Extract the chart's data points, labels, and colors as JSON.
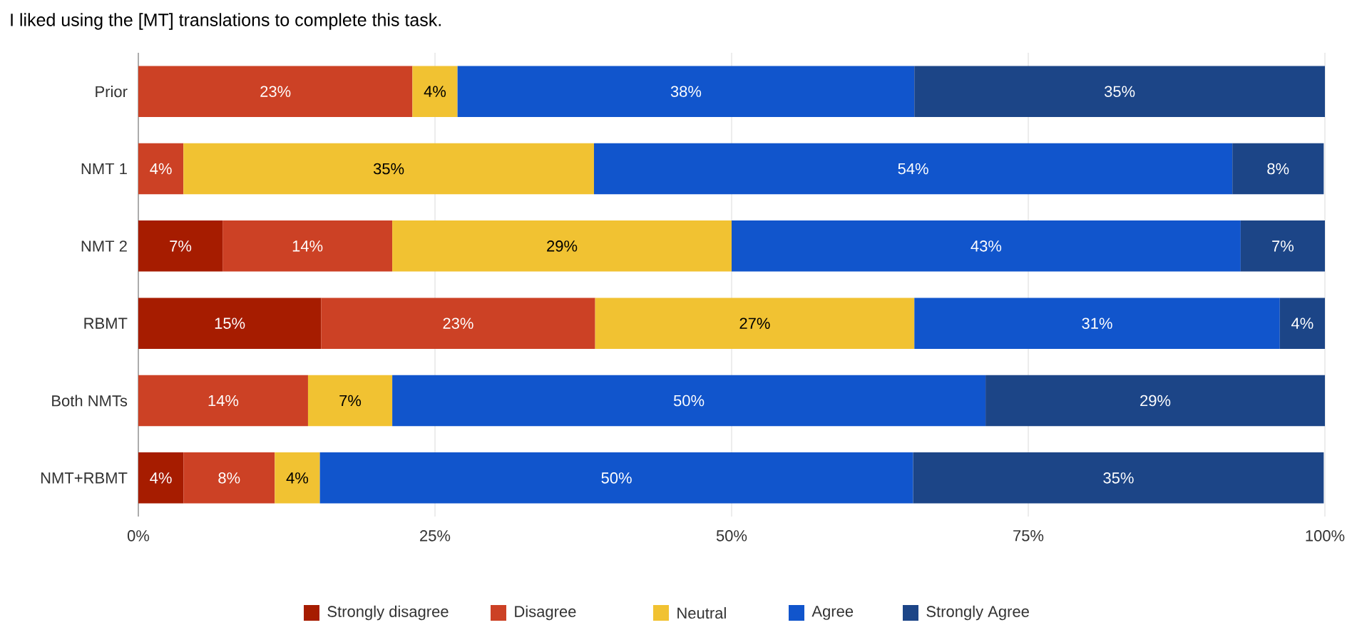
{
  "chart_data": {
    "type": "bar",
    "orientation": "horizontal",
    "stacked": true,
    "title": "I liked using the [MT] translations to complete this task.",
    "categories": [
      "Prior",
      "NMT 1",
      "NMT 2",
      "RBMT",
      "Both NMTs",
      "NMT+RBMT"
    ],
    "series": [
      {
        "name": "Strongly disagree",
        "color": "#a61c00",
        "values": [
          null,
          null,
          7.1,
          15.4,
          null,
          3.8
        ],
        "value_labels": [
          null,
          null,
          "7%",
          "15%",
          null,
          "4%"
        ]
      },
      {
        "name": "Disagree",
        "color": "#cc4125",
        "values": [
          23.1,
          3.8,
          14.3,
          23.1,
          14.3,
          7.7
        ],
        "value_labels": [
          "23%",
          "4%",
          "14%",
          "23%",
          "14%",
          "8%"
        ]
      },
      {
        "name": "Neutral",
        "color": "#f1c232",
        "values": [
          3.8,
          34.6,
          28.6,
          26.9,
          7.1,
          3.8
        ],
        "value_labels": [
          "4%",
          "35%",
          "29%",
          "27%",
          "7%",
          "4%"
        ]
      },
      {
        "name": "Agree",
        "color": "#1155cc",
        "values": [
          38.5,
          53.8,
          42.9,
          30.8,
          50,
          50
        ],
        "value_labels": [
          "38%",
          "54%",
          "43%",
          "31%",
          "50%",
          "50%"
        ]
      },
      {
        "name": "Strongly Agree",
        "color": "#1c4587",
        "values": [
          34.6,
          7.7,
          7.1,
          3.8,
          28.6,
          34.6
        ],
        "value_labels": [
          "35%",
          "8%",
          "7%",
          "4%",
          "29%",
          "35%"
        ]
      }
    ],
    "xlim": [
      0,
      100
    ],
    "xticks": [
      {
        "value": 0,
        "label": "0%"
      },
      {
        "value": 25,
        "label": "25%"
      },
      {
        "value": 50,
        "label": "50%"
      },
      {
        "value": 75,
        "label": "75%"
      },
      {
        "value": 100,
        "label": "100%"
      }
    ],
    "grid": "x",
    "legend": "bottom"
  }
}
